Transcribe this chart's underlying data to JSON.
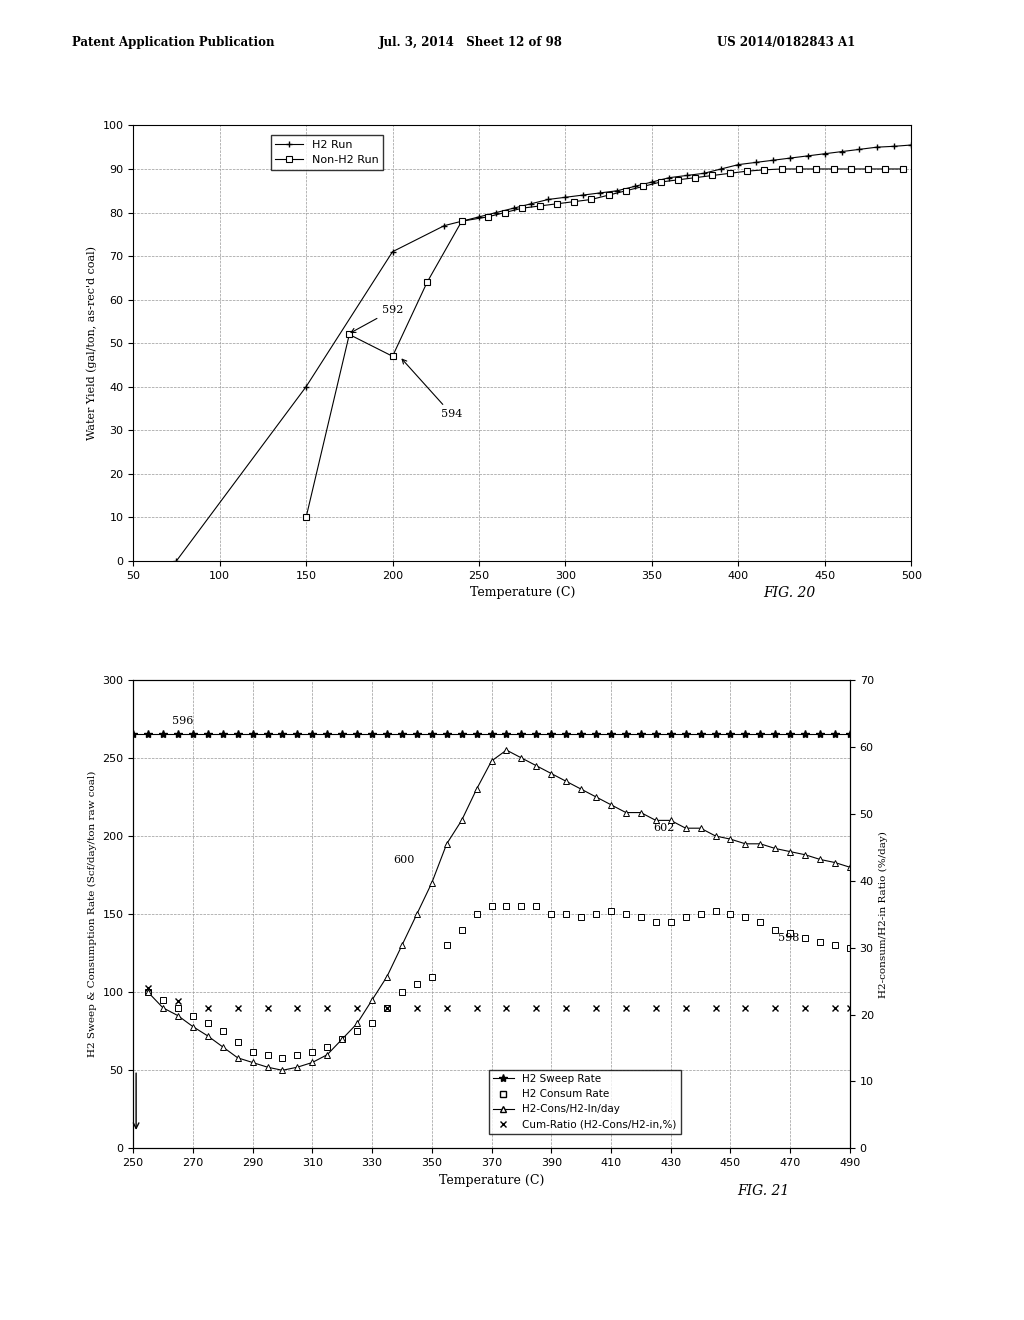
{
  "header_left": "Patent Application Publication",
  "header_mid": "Jul. 3, 2014   Sheet 12 of 98",
  "header_right": "US 2014/0182843 A1",
  "fig20": {
    "xlabel": "Temperature (C)",
    "ylabel": "Water Yield (gal/ton, as-rec'd coal)",
    "xlim": [
      50,
      500
    ],
    "ylim": [
      0,
      100
    ],
    "xticks": [
      50,
      100,
      150,
      200,
      250,
      300,
      350,
      400,
      450,
      500
    ],
    "yticks": [
      0,
      10,
      20,
      30,
      40,
      50,
      60,
      70,
      80,
      90,
      100
    ],
    "h2_run_x": [
      75,
      150,
      200,
      230,
      250,
      260,
      270,
      280,
      290,
      300,
      310,
      320,
      330,
      340,
      350,
      360,
      370,
      380,
      390,
      400,
      410,
      420,
      430,
      440,
      450,
      460,
      470,
      480,
      490,
      500
    ],
    "h2_run_y": [
      0,
      40,
      71,
      77,
      79,
      80,
      81,
      82,
      83,
      83.5,
      84,
      84.5,
      85,
      86,
      87,
      88,
      88.5,
      89,
      90,
      91,
      91.5,
      92,
      92.5,
      93,
      93.5,
      94,
      94.5,
      95,
      95.2,
      95.5
    ],
    "nonh2_run_x": [
      150,
      175,
      200,
      220,
      240,
      255,
      265,
      275,
      285,
      295,
      305,
      315,
      325,
      335,
      345,
      355,
      365,
      375,
      385,
      395,
      405,
      415,
      425,
      435,
      445,
      455,
      465,
      475,
      485,
      495
    ],
    "nonh2_run_y": [
      10,
      52,
      47,
      64,
      78,
      79,
      80,
      81,
      81.5,
      82,
      82.5,
      83,
      84,
      85,
      86,
      87,
      87.5,
      88,
      88.5,
      89,
      89.5,
      89.8,
      90,
      90,
      90,
      90,
      90,
      90,
      90,
      90
    ]
  },
  "fig21": {
    "xlabel": "Temperature (C)",
    "ylabel_left": "H2 Sweep & Consumption Rate (Scf/day/ton raw coal)",
    "ylabel_right": "H2-consum/H2-in Ratio (%/day)",
    "xlim": [
      250,
      490
    ],
    "ylim_left": [
      0,
      300
    ],
    "ylim_right": [
      0,
      70
    ],
    "xticks": [
      250,
      270,
      290,
      310,
      330,
      350,
      370,
      390,
      410,
      430,
      450,
      470,
      490
    ],
    "yticks_left": [
      0,
      50,
      100,
      150,
      200,
      250,
      300
    ],
    "yticks_right": [
      0,
      10,
      20,
      30,
      40,
      50,
      60,
      70
    ],
    "sweep_rate_x": [
      250,
      255,
      260,
      265,
      270,
      275,
      280,
      285,
      290,
      295,
      300,
      305,
      310,
      315,
      320,
      325,
      330,
      335,
      340,
      345,
      350,
      355,
      360,
      365,
      370,
      375,
      380,
      385,
      390,
      395,
      400,
      405,
      410,
      415,
      420,
      425,
      430,
      435,
      440,
      445,
      450,
      455,
      460,
      465,
      470,
      475,
      480,
      485,
      490
    ],
    "sweep_rate_y": [
      265,
      265,
      265,
      265,
      265,
      265,
      265,
      265,
      265,
      265,
      265,
      265,
      265,
      265,
      265,
      265,
      265,
      265,
      265,
      265,
      265,
      265,
      265,
      265,
      265,
      265,
      265,
      265,
      265,
      265,
      265,
      265,
      265,
      265,
      265,
      265,
      265,
      265,
      265,
      265,
      265,
      265,
      265,
      265,
      265,
      265,
      265,
      265,
      265
    ],
    "consum_rate_x": [
      255,
      260,
      265,
      270,
      275,
      280,
      285,
      290,
      295,
      300,
      305,
      310,
      315,
      320,
      325,
      330,
      335,
      340,
      345,
      350,
      355,
      360,
      365,
      370,
      375,
      380,
      385,
      390,
      395,
      400,
      405,
      410,
      415,
      420,
      425,
      430,
      435,
      440,
      445,
      450,
      455,
      460,
      465,
      470,
      475,
      480,
      485,
      490
    ],
    "consum_rate_y": [
      100,
      95,
      90,
      85,
      80,
      75,
      68,
      62,
      60,
      58,
      60,
      62,
      65,
      70,
      75,
      80,
      90,
      100,
      105,
      110,
      130,
      140,
      150,
      155,
      155,
      155,
      155,
      150,
      150,
      148,
      150,
      152,
      150,
      148,
      145,
      145,
      148,
      150,
      152,
      150,
      148,
      145,
      140,
      138,
      135,
      132,
      130,
      128
    ],
    "h2cons_h2in_x": [
      255,
      260,
      265,
      270,
      275,
      280,
      285,
      290,
      295,
      300,
      305,
      310,
      315,
      320,
      325,
      330,
      335,
      340,
      345,
      350,
      355,
      360,
      365,
      370,
      375,
      380,
      385,
      390,
      395,
      400,
      405,
      410,
      415,
      420,
      425,
      430,
      435,
      440,
      445,
      450,
      455,
      460,
      465,
      470,
      475,
      480,
      485,
      490
    ],
    "h2cons_h2in_y": [
      100,
      90,
      85,
      78,
      72,
      65,
      58,
      55,
      52,
      50,
      52,
      55,
      60,
      70,
      80,
      95,
      110,
      130,
      150,
      170,
      195,
      210,
      230,
      248,
      255,
      250,
      245,
      240,
      235,
      230,
      225,
      220,
      215,
      215,
      210,
      210,
      205,
      205,
      200,
      198,
      195,
      195,
      192,
      190,
      188,
      185,
      183,
      180
    ],
    "cum_ratio_x": [
      255,
      265,
      275,
      285,
      295,
      305,
      315,
      325,
      335,
      345,
      355,
      365,
      375,
      385,
      395,
      405,
      415,
      425,
      435,
      445,
      455,
      465,
      475,
      485,
      490
    ],
    "cum_ratio_y": [
      24,
      22,
      21,
      21,
      21,
      21,
      21,
      21,
      21,
      21,
      21,
      21,
      21,
      21,
      21,
      21,
      21,
      21,
      21,
      21,
      21,
      21,
      21,
      21,
      21
    ]
  },
  "bg_color": "#ffffff",
  "grid_color": "#999999"
}
